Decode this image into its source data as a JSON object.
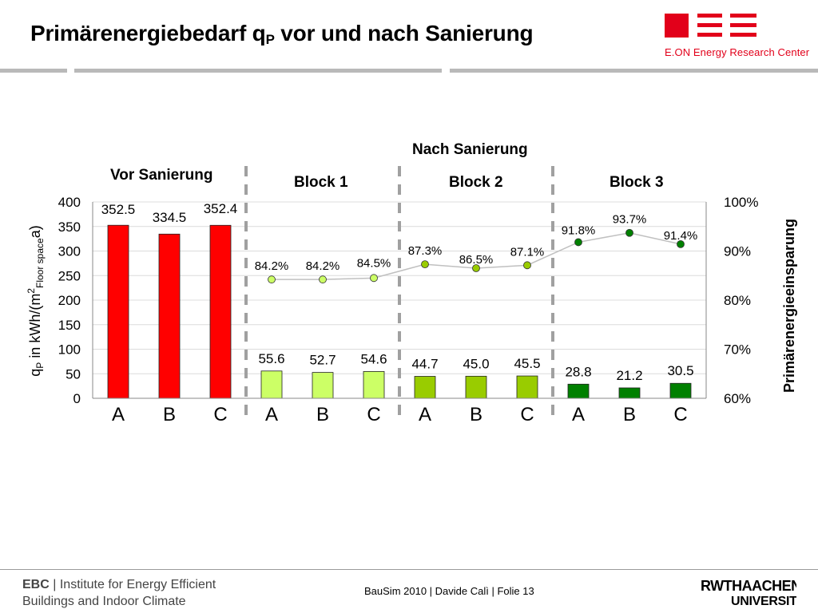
{
  "slide": {
    "title_main": "Primärenergiebedarf q",
    "title_sub": "P",
    "title_rest": " vor und nach Sanierung"
  },
  "logos": {
    "eon_text": "E.ON Energy Research Center",
    "ebc_abbr": "EBC",
    "ebc_sep": "|",
    "ebc_line1": "Institute for Energy Efficient",
    "ebc_line2": "Buildings and Indoor Climate",
    "rwth_line1": "RWTHAACHEN",
    "rwth_line2": "UNIVERSITY"
  },
  "footer": {
    "text": "BauSim 2010 | Davide Calì | Folie 13"
  },
  "colors": {
    "vor": "#ff0000",
    "block1": "#ccff66",
    "block2": "#99cc00",
    "block3": "#008000",
    "line": "#c0c0c0",
    "eon_red": "#e2001a"
  },
  "chart_data": {
    "type": "bar",
    "ylabel_main": "q",
    "ylabel_sub_p": "P",
    "ylabel_mid": " in kWh/(m",
    "ylabel_sup": "2",
    "ylabel_sub_floor": "Floor space",
    "ylabel_end": "a)",
    "y2label": "Primärenergieeinsparung",
    "ylim": [
      0,
      400
    ],
    "yticks": [
      0,
      50,
      100,
      150,
      200,
      250,
      300,
      350,
      400
    ],
    "y2lim": [
      60,
      100
    ],
    "y2ticks": [
      "60%",
      "70%",
      "80%",
      "90%",
      "100%"
    ],
    "y2tick_values": [
      60,
      70,
      80,
      90,
      100
    ],
    "grid": true,
    "group_labels": {
      "nach": "Nach Sanierung",
      "vor": "Vor Sanierung",
      "block1": "Block 1",
      "block2": "Block 2",
      "block3": "Block 3"
    },
    "categories": [
      "A",
      "B",
      "C",
      "A",
      "B",
      "C",
      "A",
      "B",
      "C",
      "A",
      "B",
      "C"
    ],
    "groups": [
      "vor",
      "vor",
      "vor",
      "block1",
      "block1",
      "block1",
      "block2",
      "block2",
      "block2",
      "block3",
      "block3",
      "block3"
    ],
    "bars": [
      352.5,
      334.5,
      352.4,
      55.6,
      52.7,
      54.6,
      44.7,
      45.0,
      45.5,
      28.8,
      21.2,
      30.5
    ],
    "bar_labels": [
      "352.5",
      "334.5",
      "352.4",
      "55.6",
      "52.7",
      "54.6",
      "44.7",
      "45.0",
      "45.5",
      "28.8",
      "21.2",
      "30.5"
    ],
    "savings": [
      null,
      null,
      null,
      84.2,
      84.2,
      84.5,
      87.3,
      86.5,
      87.1,
      91.8,
      93.7,
      91.4
    ],
    "savings_labels": [
      "",
      "",
      "",
      "84.2%",
      "84.2%",
      "84.5%",
      "87.3%",
      "86.5%",
      "87.1%",
      "91.8%",
      "93.7%",
      "91.4%"
    ]
  }
}
